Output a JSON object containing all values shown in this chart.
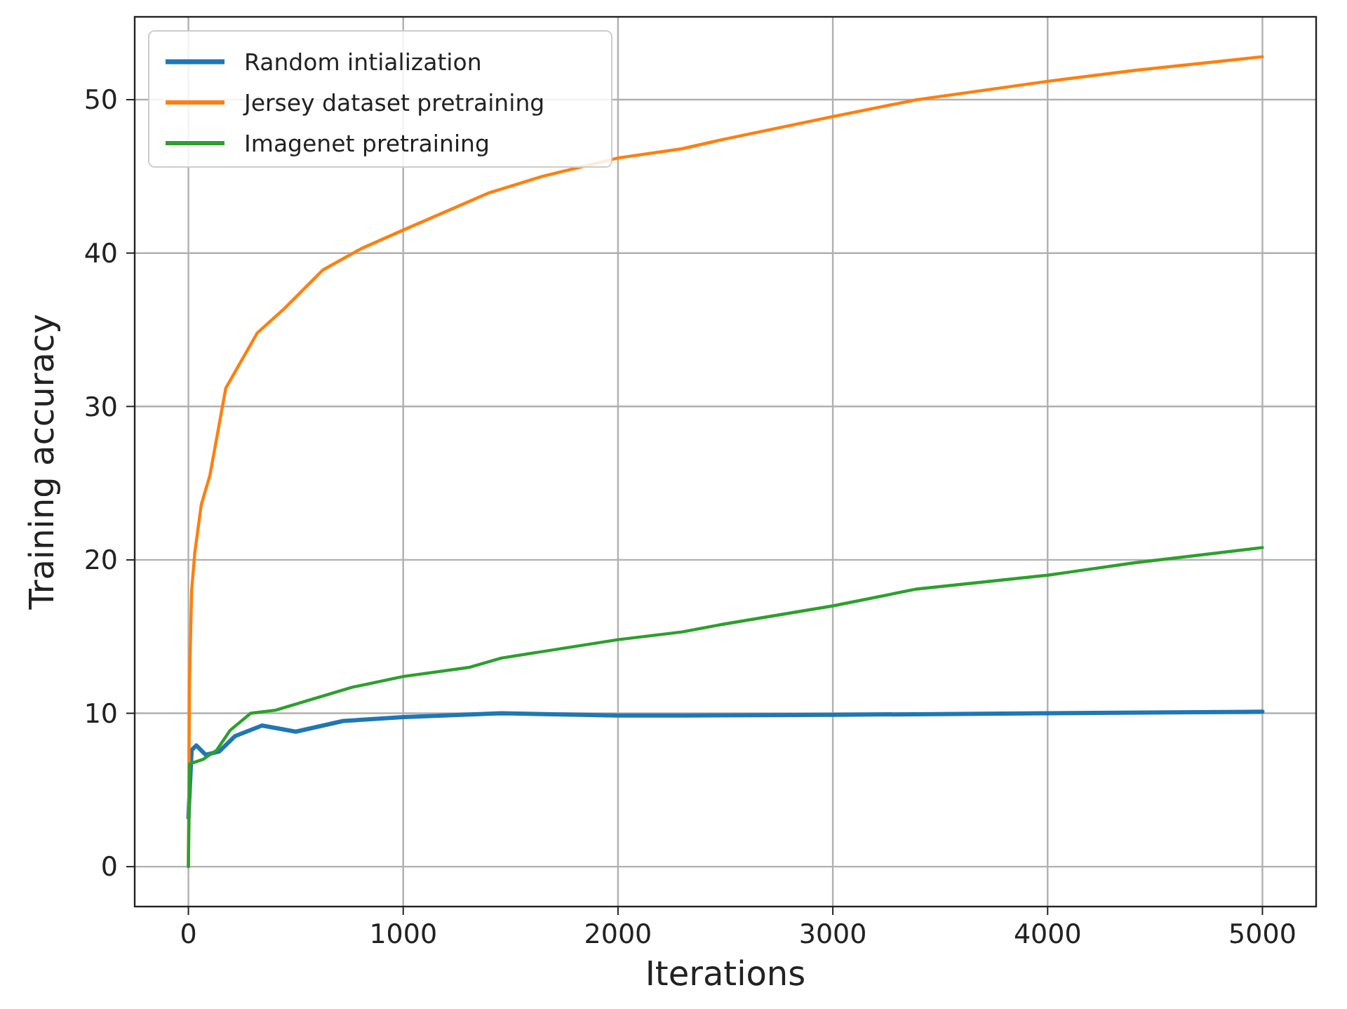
{
  "chart_data": {
    "type": "line",
    "xlabel": "Iterations",
    "ylabel": "Training accuracy",
    "xlim": [
      -250,
      5250
    ],
    "ylim": [
      -2.6,
      55.4
    ],
    "xticks": [
      0,
      1000,
      2000,
      3000,
      4000,
      5000
    ],
    "yticks": [
      0,
      10,
      20,
      30,
      40,
      50
    ],
    "grid": true,
    "legend": "top left",
    "marker": "none",
    "line_style": "solid",
    "series": [
      {
        "name": "Random intialization",
        "color": "#1f77b4",
        "x": [
          0,
          15,
          37,
          80,
          143,
          216,
          343,
          500,
          721,
          1000,
          1457,
          2000,
          2298,
          3000,
          4000,
          5000
        ],
        "values": [
          3.2,
          7.6,
          7.9,
          7.3,
          7.5,
          8.5,
          9.2,
          8.8,
          9.5,
          9.75,
          10.0,
          9.85,
          9.85,
          9.9,
          10.0,
          10.1
        ]
      },
      {
        "name": "Jersey dataset pretraining",
        "color": "#ff7f0e",
        "x": [
          0,
          5,
          15,
          30,
          60,
          100,
          174,
          321,
          448,
          626,
          806,
          1000,
          1394,
          1647,
          2000,
          2298,
          2487,
          3000,
          3391,
          4000,
          4400,
          5000
        ],
        "values": [
          0,
          12,
          18,
          20.5,
          23.6,
          25.5,
          31.2,
          34.8,
          36.4,
          38.9,
          40.3,
          41.5,
          43.9,
          45,
          46.2,
          46.8,
          47.4,
          48.9,
          50,
          51.2,
          51.9,
          52.8
        ]
      },
      {
        "name": "Imagenet pretraining",
        "color": "#2ca02c",
        "x": [
          0,
          6,
          69,
          132,
          195,
          290,
          406,
          763,
          1000,
          1310,
          1457,
          2000,
          2298,
          2487,
          3000,
          3391,
          4000,
          4400,
          5000
        ],
        "values": [
          0,
          6.7,
          7,
          7.6,
          8.9,
          10,
          10.2,
          11.7,
          12.4,
          13,
          13.6,
          14.8,
          15.3,
          15.8,
          17,
          18.1,
          19,
          19.8,
          20.8
        ]
      }
    ]
  }
}
